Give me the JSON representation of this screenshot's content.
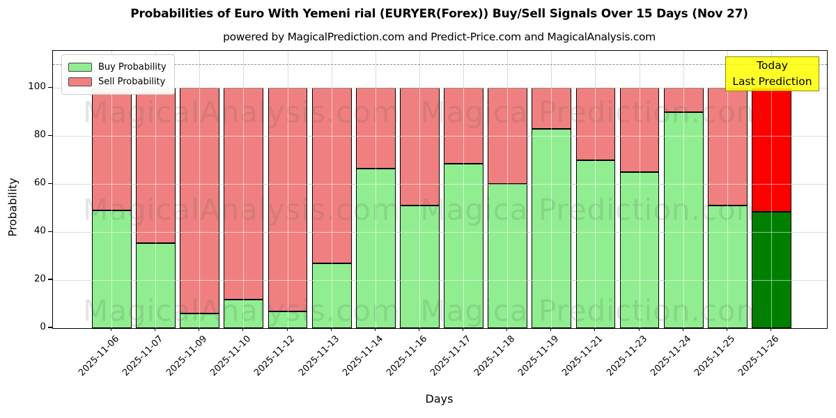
{
  "title": "Probabilities of Euro With Yemeni rial (EURYER(Forex)) Buy/Sell Signals Over 15 Days (Nov 27)",
  "subtitle": "powered by MagicalPrediction.com and Predict-Price.com and MagicalAnalysis.com",
  "legend": {
    "buy_label": "Buy Probability",
    "sell_label": "Sell Probability"
  },
  "annotation": {
    "line1": "Today",
    "line2": "Last Prediction"
  },
  "watermarks": {
    "left": "MagicalAnalysis.com",
    "right": "Magica Prediction.com"
  },
  "axes": {
    "xlabel": "Days",
    "ylabel": "Probability",
    "yticks": [
      0,
      20,
      40,
      60,
      80,
      100
    ],
    "ylim": [
      0,
      115.5
    ],
    "dashed_line_y": 110,
    "grid": "on"
  },
  "colors": {
    "buy": "#90EE90",
    "sell": "#F08080",
    "today_buy": "#008000",
    "today_sell": "#FF0000",
    "annotation_bg": "#FFFF00",
    "grid": "#b0b0b0",
    "bar_edge": "#000000"
  },
  "chart_data": {
    "type": "bar",
    "stacked": true,
    "title": "Probabilities of Euro With Yemeni rial (EURYER(Forex)) Buy/Sell Signals Over 15 Days (Nov 27)",
    "xlabel": "Days",
    "ylabel": "Probability",
    "ylim": [
      0,
      115.5
    ],
    "legend_position": "upper left",
    "today_index": 15,
    "categories": [
      "2025-11-06",
      "2025-11-07",
      "2025-11-09",
      "2025-11-10",
      "2025-11-12",
      "2025-11-13",
      "2025-11-14",
      "2025-11-16",
      "2025-11-17",
      "2025-11-18",
      "2025-11-19",
      "2025-11-21",
      "2025-11-23",
      "2025-11-24",
      "2025-11-25",
      "2025-11-26"
    ],
    "series": [
      {
        "name": "Buy Probability",
        "values": [
          49,
          35.5,
          6,
          12,
          7,
          27,
          66.5,
          51,
          68.5,
          60,
          83,
          70,
          65,
          90,
          51,
          48.5
        ]
      },
      {
        "name": "Sell Probability",
        "values": [
          51,
          64.5,
          94,
          88,
          93,
          73,
          33.5,
          49,
          31.5,
          40,
          17,
          30,
          35,
          10,
          49,
          51.5
        ]
      }
    ]
  }
}
